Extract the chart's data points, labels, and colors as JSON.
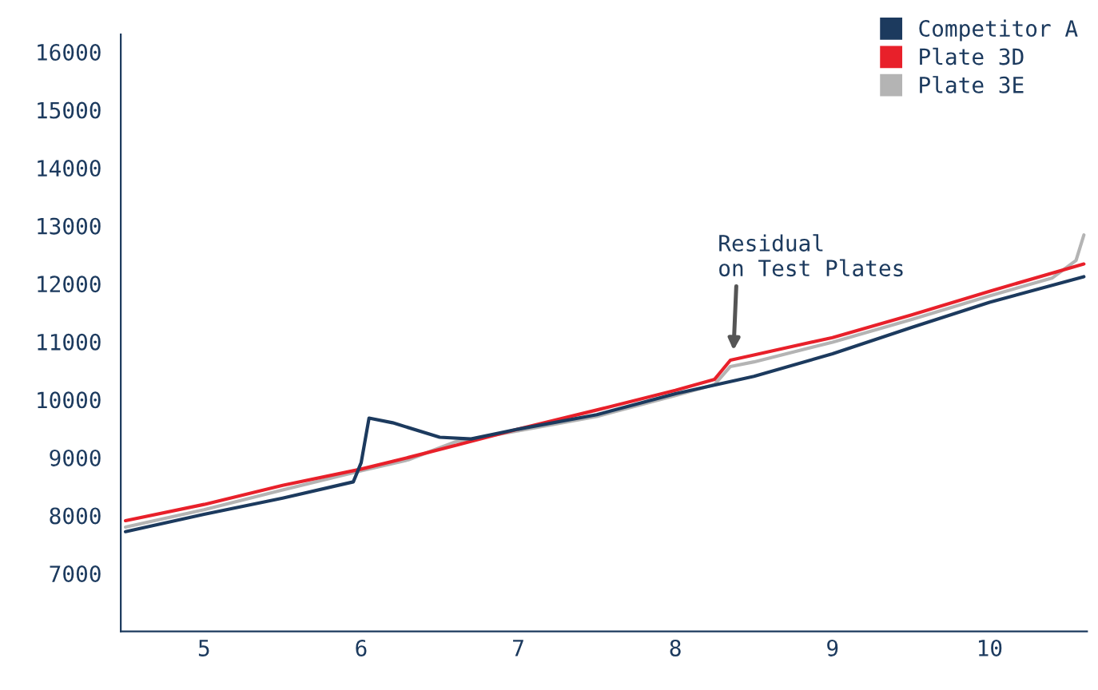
{
  "chart_data": {
    "type": "line",
    "xlim": [
      4.47,
      10.62
    ],
    "xticks": [
      5,
      6,
      7,
      8,
      9,
      10
    ],
    "ylim": [
      6000,
      16300
    ],
    "yticks": [
      7000,
      8000,
      9000,
      10000,
      11000,
      12000,
      13000,
      14000,
      15000,
      16000
    ],
    "grid": false,
    "legend": "top right",
    "marker": "none",
    "line_style": "solid",
    "annotations": [
      {
        "text": "Residual\non Test Plates",
        "x": 8.37,
        "y": 10850
      }
    ],
    "series": [
      {
        "name": "Competitor A",
        "color": "#1c3a5e",
        "x": [
          4.5,
          5,
          5.5,
          5.95,
          6.0,
          6.05,
          6.2,
          6.5,
          6.7,
          7,
          7.5,
          8,
          8.5,
          9,
          9.5,
          10,
          10.6
        ],
        "values": [
          7720,
          8020,
          8300,
          8580,
          8910,
          9680,
          9600,
          9350,
          9320,
          9490,
          9740,
          10100,
          10400,
          10790,
          11240,
          11680,
          12120
        ]
      },
      {
        "name": "Plate 3D",
        "color": "#e8202a",
        "x": [
          4.5,
          5,
          5.5,
          6,
          6.3,
          6.6,
          7,
          7.5,
          8,
          8.25,
          8.35,
          8.5,
          9,
          9.5,
          10,
          10.6
        ],
        "values": [
          7910,
          8190,
          8520,
          8800,
          9000,
          9210,
          9490,
          9820,
          10160,
          10350,
          10680,
          10770,
          11070,
          11460,
          11870,
          12340
        ]
      },
      {
        "name": "Plate 3E",
        "color": "#b4b4b4",
        "x": [
          4.5,
          5,
          5.5,
          6,
          6.3,
          6.6,
          7,
          7.5,
          8,
          8.25,
          8.35,
          8.5,
          9,
          9.5,
          10,
          10.4,
          10.55,
          10.6
        ],
        "values": [
          7800,
          8100,
          8440,
          8770,
          8960,
          9270,
          9460,
          9710,
          10070,
          10260,
          10570,
          10650,
          10990,
          11380,
          11790,
          12100,
          12400,
          12840
        ]
      }
    ]
  }
}
